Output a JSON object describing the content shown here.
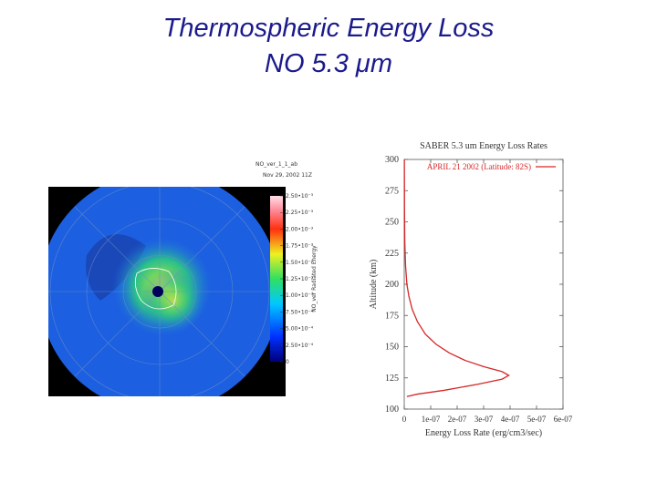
{
  "slide": {
    "title_lines": [
      "Thermospheric Energy Loss",
      "NO 5.3 μm"
    ]
  },
  "chart_data": [
    {
      "type": "map",
      "title": "NO_ver_1_1_ab",
      "subtitle": "Nov 29, 2002 11Z",
      "colorbar_label": "NO_ver Radiated Energy",
      "clim": [
        0,
        0.0025
      ],
      "cticks": [
        {
          "value": 0.0025,
          "label": "2.50•10⁻³"
        },
        {
          "value": 0.00225,
          "label": "2.25•10⁻³"
        },
        {
          "value": 0.002,
          "label": "2.00•10⁻³"
        },
        {
          "value": 0.00175,
          "label": "1.75•10⁻³"
        },
        {
          "value": 0.0015,
          "label": "1.50•10⁻³"
        },
        {
          "value": 0.00125,
          "label": "1.25•10⁻³"
        },
        {
          "value": 0.001,
          "label": "1.00•10⁻³"
        },
        {
          "value": 0.00075,
          "label": "7.50•10⁻⁴"
        },
        {
          "value": 0.0005,
          "label": "5.00•10⁻⁴"
        },
        {
          "value": 0.00025,
          "label": "2.50•10⁻⁴"
        },
        0
      ]
    },
    {
      "type": "line",
      "title": "SABER 5.3 um Energy Loss Rates",
      "x_label": "Energy Loss Rate (erg/cm3/sec)",
      "y_label": "Altitude (km)",
      "x": [
        1e-08,
        5e-08,
        1.5e-07,
        2.8e-07,
        3.7e-07,
        3.95e-07,
        3.7e-07,
        3e-07,
        2.3e-07,
        1.7e-07,
        1.2e-07,
        8e-08,
        5e-08,
        3e-08,
        1.8e-08,
        1e-08,
        5e-09,
        2e-09,
        1e-09,
        5e-10
      ],
      "series": [
        {
          "name": "APRIL 21 2002 (Latitude: 82S)",
          "color": "#d62728",
          "values": [
            110,
            112,
            115,
            120,
            124,
            127,
            130,
            134,
            139,
            145,
            152,
            160,
            170,
            180,
            190,
            200,
            215,
            235,
            260,
            300
          ]
        }
      ],
      "xlim": [
        0,
        6e-07
      ],
      "xticks": [
        0,
        {
          "value": 1e-07,
          "label": "1e-07"
        },
        {
          "value": 2e-07,
          "label": "2e-07"
        },
        {
          "value": 3e-07,
          "label": "3e-07"
        },
        {
          "value": 4e-07,
          "label": "4e-07"
        },
        {
          "value": 5e-07,
          "label": "5e-07"
        },
        {
          "value": 6e-07,
          "label": "6e-07"
        }
      ],
      "ylim": [
        100,
        300
      ],
      "yticks": [
        100,
        125,
        150,
        175,
        200,
        225,
        250,
        275,
        300
      ],
      "legend": "upper right"
    }
  ]
}
